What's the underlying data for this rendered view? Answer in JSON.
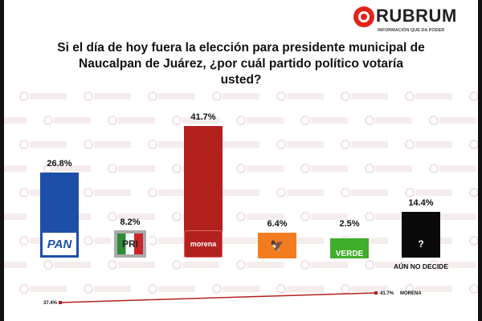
{
  "brand": {
    "name": "RUBRUM",
    "tagline": "INFORMACIÓN QUE DA PODER",
    "watermark": "RUBRUM",
    "color": "#e2231a"
  },
  "title_lines": [
    "Si el día de hoy fuera la elección para presidente municipal de",
    "Naucalpan de Juárez, ¿por cuál partido político votaría",
    "usted?"
  ],
  "chart_data": {
    "type": "bar",
    "title": "Si el día de hoy fuera la elección para presidente municipal de Naucalpan de Juárez, ¿por cuál partido político votaría usted?",
    "categories": [
      "PAN",
      "PRI",
      "morena",
      "Movimiento Ciudadano",
      "VERDE",
      "AÚN NO DECIDE"
    ],
    "values": [
      26.8,
      8.2,
      41.7,
      6.4,
      2.5,
      14.4
    ],
    "labels": [
      "26.8%",
      "8.2%",
      "41.7%",
      "6.4%",
      "2.5%",
      "14.4%"
    ],
    "colors": [
      "#1d4fa8",
      "#c9262c",
      "#b3211f",
      "#f47c20",
      "#3fae2a",
      "#0a0a0a"
    ],
    "ylim": [
      0,
      45
    ],
    "trend": {
      "party": "MORENA",
      "from_label": "37.4%",
      "to_label": "41.7%",
      "from": 37.4,
      "to": 41.7,
      "color": "#b3211f"
    }
  }
}
